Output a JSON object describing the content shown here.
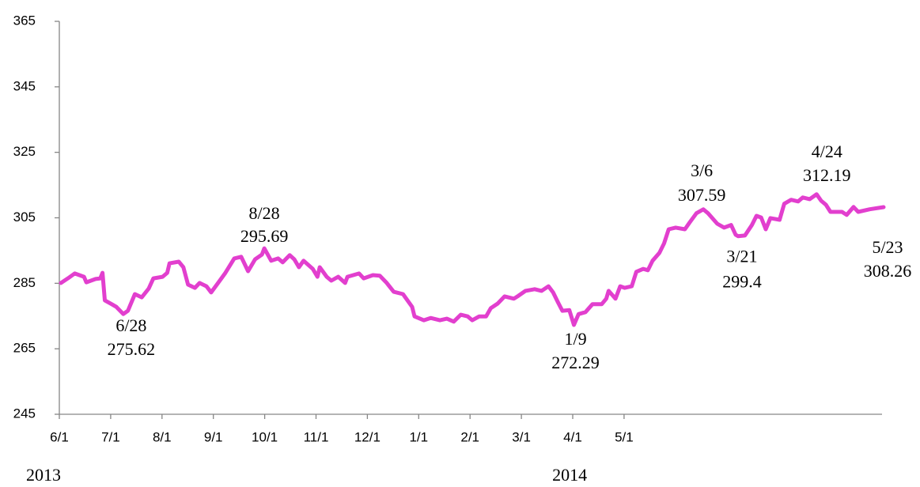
{
  "chart_data": {
    "type": "line",
    "x": [
      "2013-06-01",
      "2013-06-04",
      "2013-06-07",
      "2013-06-11",
      "2013-06-12",
      "2013-06-16",
      "2013-06-18",
      "2013-06-19",
      "2013-06-20",
      "2013-06-23",
      "2013-06-25",
      "2013-06-28",
      "2013-06-30",
      "2013-07-03",
      "2013-07-06",
      "2013-07-09",
      "2013-07-11",
      "2013-07-15",
      "2013-07-17",
      "2013-07-18",
      "2013-07-22",
      "2013-07-24",
      "2013-07-26",
      "2013-07-29",
      "2013-07-31",
      "2013-08-03",
      "2013-08-05",
      "2013-08-08",
      "2013-08-11",
      "2013-08-15",
      "2013-08-18",
      "2013-08-21",
      "2013-08-24",
      "2013-08-27",
      "2013-08-28",
      "2013-08-31",
      "2013-09-03",
      "2013-09-05",
      "2013-09-08",
      "2013-09-10",
      "2013-09-12",
      "2013-09-14",
      "2013-09-18",
      "2013-09-20",
      "2013-09-21",
      "2013-09-24",
      "2013-09-26",
      "2013-09-29",
      "2013-10-02",
      "2013-10-03",
      "2013-10-08",
      "2013-10-10",
      "2013-10-14",
      "2013-10-17",
      "2013-10-20",
      "2013-10-23",
      "2013-10-27",
      "2013-10-31",
      "2013-11-01",
      "2013-11-05",
      "2013-11-08",
      "2013-11-12",
      "2013-11-15",
      "2013-11-18",
      "2013-11-21",
      "2013-11-24",
      "2013-11-26",
      "2013-11-29",
      "2013-12-02",
      "2013-12-04",
      "2013-12-07",
      "2013-12-10",
      "2013-12-14",
      "2013-12-16",
      "2013-12-19",
      "2013-12-23",
      "2013-12-26",
      "2013-12-29",
      "2013-12-31",
      "2014-01-02",
      "2014-01-04",
      "2014-01-07",
      "2014-01-09",
      "2014-01-11",
      "2014-01-14",
      "2014-01-17",
      "2014-01-21",
      "2014-01-23",
      "2014-01-24",
      "2014-01-27",
      "2014-01-29",
      "2014-01-31",
      "2014-02-03",
      "2014-02-05",
      "2014-02-08",
      "2014-02-10",
      "2014-02-12",
      "2014-02-15",
      "2014-02-17",
      "2014-02-19",
      "2014-02-22",
      "2014-02-26",
      "2014-02-28",
      "2014-03-03",
      "2014-03-06",
      "2014-03-08",
      "2014-03-12",
      "2014-03-15",
      "2014-03-18",
      "2014-03-20",
      "2014-03-21",
      "2014-03-24",
      "2014-03-27",
      "2014-03-29",
      "2014-03-31",
      "2014-04-02",
      "2014-04-04",
      "2014-04-08",
      "2014-04-10",
      "2014-04-13",
      "2014-04-16",
      "2014-04-18",
      "2014-04-21",
      "2014-04-23",
      "2014-04-24",
      "2014-04-26",
      "2014-04-28",
      "2014-04-30",
      "2014-05-05",
      "2014-05-07",
      "2014-05-10",
      "2014-05-12",
      "2014-05-17",
      "2014-05-23"
    ],
    "values": [
      285.1,
      286.5,
      288,
      287,
      285.3,
      286.3,
      286.5,
      288.2,
      279.8,
      278.6,
      277.8,
      275.62,
      276.6,
      281.7,
      280.7,
      283.4,
      286.5,
      287,
      288.2,
      291.1,
      291.6,
      289.9,
      284.6,
      283.6,
      285.1,
      284.1,
      282.2,
      285.1,
      288,
      292.6,
      293.1,
      288.7,
      292.3,
      293.8,
      295.69,
      291.9,
      292.6,
      291.4,
      293.6,
      292.3,
      289.9,
      291.9,
      289.4,
      287,
      289.9,
      287,
      285.8,
      287,
      285.1,
      287,
      288,
      286.5,
      287.5,
      287.3,
      285.1,
      282.4,
      281.7,
      277.8,
      274.9,
      273.7,
      274.4,
      273.7,
      274.2,
      273.3,
      275.4,
      274.9,
      273.7,
      274.9,
      274.9,
      277.4,
      278.8,
      281,
      280.3,
      281.2,
      282.7,
      283.2,
      282.7,
      284.1,
      282.2,
      279.3,
      276.6,
      276.8,
      272.29,
      275.6,
      276.2,
      278.6,
      278.6,
      280.3,
      282.7,
      280.3,
      284.1,
      283.6,
      284.1,
      288.5,
      289.4,
      289,
      291.9,
      294.3,
      297.2,
      301.5,
      302,
      301.5,
      303.5,
      306.4,
      307.59,
      306.4,
      303.2,
      302,
      302.8,
      299.8,
      299.4,
      299.6,
      302.8,
      305.6,
      305.1,
      301.5,
      304.9,
      304.4,
      309.3,
      310.5,
      310,
      311.2,
      310.7,
      311.7,
      312.19,
      310.2,
      309,
      306.8,
      306.8,
      305.9,
      308.3,
      306.8,
      307.6,
      308.26
    ],
    "color": "#e23fce",
    "xlim": [
      "2013-06-01",
      "2014-05-23"
    ],
    "ylim": [
      245,
      365
    ],
    "yticks": [
      245,
      265,
      285,
      305,
      325,
      345,
      365
    ],
    "x_labels": [
      "6/1",
      "7/1",
      "8/1",
      "9/1",
      "10/1",
      "11/1",
      "12/1",
      "1/1",
      "2/1",
      "3/1",
      "4/1",
      "5/1"
    ],
    "year_labels": [
      {
        "x": "2013-06-01",
        "label": "2013"
      },
      {
        "x": "2014-01-01",
        "label": "2014"
      }
    ],
    "annotations": [
      {
        "x": "2013-06-28",
        "date": "6/28",
        "value": 275.62
      },
      {
        "x": "2013-08-28",
        "date": "8/28",
        "value": 295.69
      },
      {
        "x": "2014-01-09",
        "date": "1/9",
        "value": 272.29
      },
      {
        "x": "2014-03-06",
        "date": "3/6",
        "value": 307.59
      },
      {
        "x": "2014-03-21",
        "date": "3/21",
        "value": 299.4
      },
      {
        "x": "2014-04-24",
        "date": "4/24",
        "value": 312.19
      },
      {
        "x": "2014-05-23",
        "date": "5/23",
        "value": 308.26
      }
    ]
  }
}
